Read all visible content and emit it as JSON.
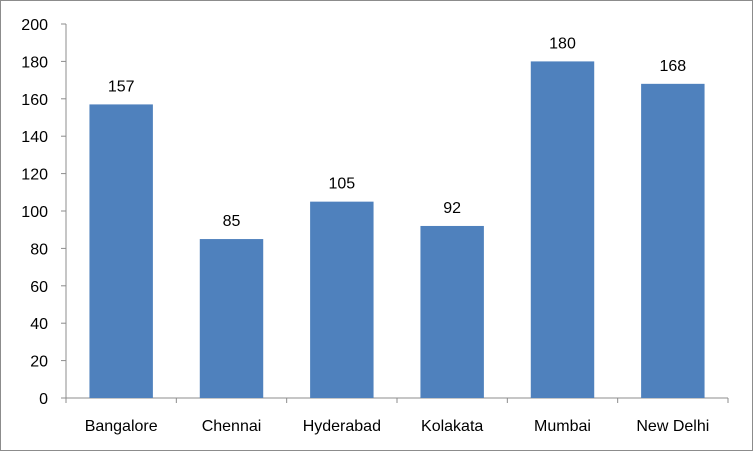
{
  "chart_data": {
    "type": "bar",
    "categories": [
      "Bangalore",
      "Chennai",
      "Hyderabad",
      "Kolakata",
      "Mumbai",
      "New Delhi"
    ],
    "values": [
      157,
      85,
      105,
      92,
      180,
      168
    ],
    "data_labels": [
      "157",
      "85",
      "105",
      "92",
      "180",
      "168"
    ],
    "title": "",
    "xlabel": "",
    "ylabel": "",
    "ylim": [
      0,
      200
    ],
    "yticks": [
      0,
      20,
      40,
      60,
      80,
      100,
      120,
      140,
      160,
      180,
      200
    ],
    "grid": false,
    "legend": "none",
    "bar_color": "#4F81BD"
  }
}
